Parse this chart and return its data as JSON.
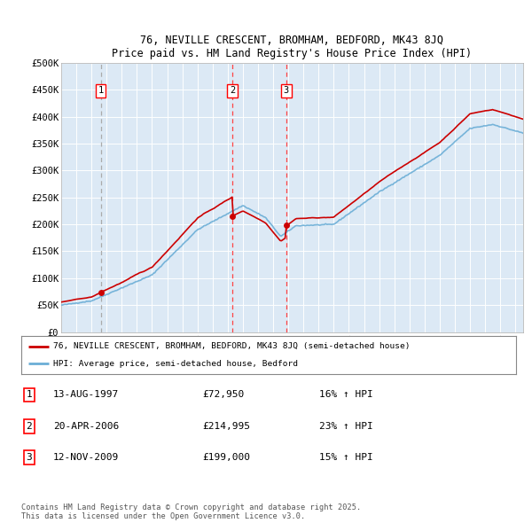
{
  "title": "76, NEVILLE CRESCENT, BROMHAM, BEDFORD, MK43 8JQ",
  "subtitle": "Price paid vs. HM Land Registry's House Price Index (HPI)",
  "background_color": "#dce9f5",
  "plot_bg_color": "#dce9f5",
  "ylim": [
    0,
    500000
  ],
  "yticks": [
    0,
    50000,
    100000,
    150000,
    200000,
    250000,
    300000,
    350000,
    400000,
    450000,
    500000
  ],
  "ytick_labels": [
    "£0",
    "£50K",
    "£100K",
    "£150K",
    "£200K",
    "£250K",
    "£300K",
    "£350K",
    "£400K",
    "£450K",
    "£500K"
  ],
  "transactions": [
    {
      "label": "1",
      "date": "13-AUG-1997",
      "price": 72950,
      "hpi_pct": "16% ↑ HPI",
      "year": 1997.62,
      "vline_color": "#aaaaaa"
    },
    {
      "label": "2",
      "date": "20-APR-2006",
      "price": 214995,
      "hpi_pct": "23% ↑ HPI",
      "year": 2006.3,
      "vline_color": "#ff4444"
    },
    {
      "label": "3",
      "date": "12-NOV-2009",
      "price": 199000,
      "hpi_pct": "15% ↑ HPI",
      "year": 2009.87,
      "vline_color": "#ff4444"
    }
  ],
  "legend_line1": "76, NEVILLE CRESCENT, BROMHAM, BEDFORD, MK43 8JQ (semi-detached house)",
  "legend_line2": "HPI: Average price, semi-detached house, Bedford",
  "footer": "Contains HM Land Registry data © Crown copyright and database right 2025.\nThis data is licensed under the Open Government Licence v3.0.",
  "price_line_color": "#cc0000",
  "hpi_line_color": "#6baed6",
  "marker_color": "#cc0000",
  "xmin": 1995,
  "xmax": 2025.5
}
